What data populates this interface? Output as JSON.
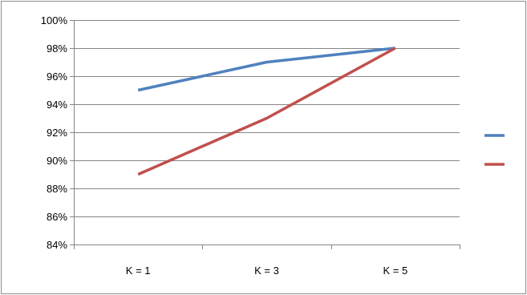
{
  "chart_data": {
    "type": "line",
    "categories": [
      "K = 1",
      "K = 3",
      "K = 5"
    ],
    "series": [
      {
        "values": [
          95,
          97,
          98
        ],
        "color": "#4f81bd"
      },
      {
        "values": [
          89,
          93,
          98
        ],
        "color": "#c0504d"
      }
    ],
    "ylim": [
      84,
      100
    ],
    "yticks": [
      84,
      86,
      88,
      90,
      92,
      94,
      96,
      98,
      100
    ],
    "ytick_format": "%",
    "grid": true,
    "legend_position": "right"
  }
}
